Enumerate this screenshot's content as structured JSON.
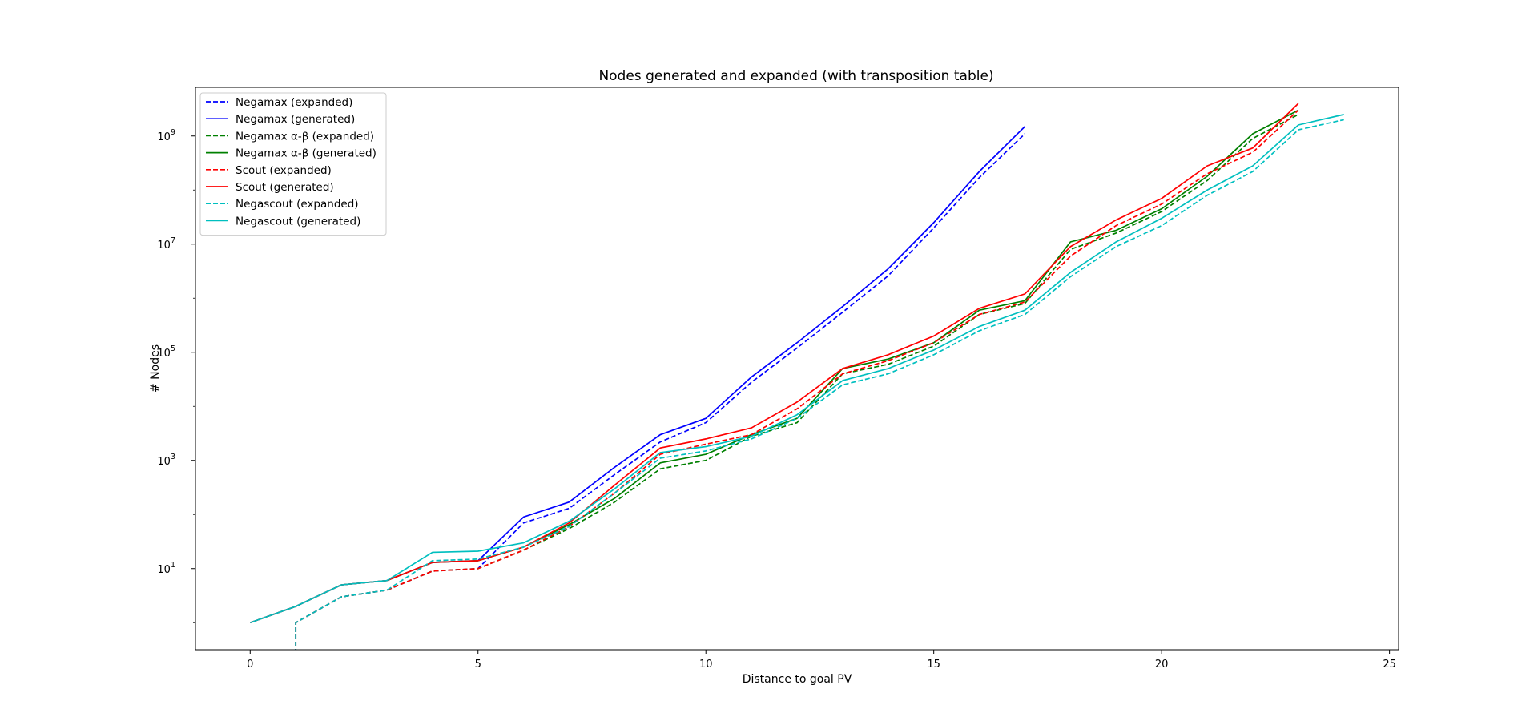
{
  "chart_data": {
    "type": "line",
    "title": "Nodes generated and expanded (with transposition table)",
    "xlabel": "Distance to goal PV",
    "ylabel": "# Nodes",
    "yscale": "log",
    "xlim": [
      -1.2,
      25.2
    ],
    "ylim_log10": [
      -0.5,
      9.9
    ],
    "xticks": [
      0,
      5,
      10,
      15,
      20,
      25
    ],
    "yticks": [
      {
        "exp": 1,
        "base": "10",
        "sup": "1"
      },
      {
        "exp": 3,
        "base": "10",
        "sup": "3"
      },
      {
        "exp": 5,
        "base": "10",
        "sup": "5"
      },
      {
        "exp": 7,
        "base": "10",
        "sup": "7"
      },
      {
        "exp": 9,
        "base": "10",
        "sup": "9"
      }
    ],
    "grid": false,
    "legend_position": "upper-left",
    "series": [
      {
        "name": "Negamax (expanded)",
        "color": "#0000ff",
        "dash": true,
        "x": [
          1,
          2,
          3,
          4,
          5,
          6,
          7,
          8,
          9,
          10,
          11,
          12,
          13,
          14,
          15,
          16,
          17
        ],
        "y": [
          1,
          3,
          4,
          9,
          10,
          70,
          130,
          550,
          2200,
          5000,
          28000,
          120000,
          550000,
          2600000,
          20000000,
          170000000,
          1100000000
        ]
      },
      {
        "name": "Negamax (generated)",
        "color": "#0000ff",
        "dash": false,
        "x": [
          0,
          1,
          2,
          3,
          4,
          5,
          6,
          7,
          8,
          9,
          10,
          11,
          12,
          13,
          14,
          15,
          16,
          17
        ],
        "y": [
          1,
          2,
          5,
          6,
          13,
          14,
          90,
          170,
          750,
          3000,
          6000,
          35000,
          150000,
          700000,
          3500000,
          25000000,
          220000000,
          1500000000
        ]
      },
      {
        "name": "Negamax α-β (expanded)",
        "color": "#008000",
        "dash": true,
        "x": [
          1,
          2,
          3,
          4,
          5,
          6,
          7,
          8,
          9,
          10,
          11,
          12,
          13,
          14,
          15,
          16,
          17,
          18,
          19,
          20,
          21,
          22,
          23
        ],
        "y": [
          1,
          3,
          4,
          9,
          10,
          22,
          55,
          170,
          700,
          1000,
          2800,
          5000,
          40000,
          60000,
          130000,
          500000,
          800000,
          8000000,
          16000000,
          40000000,
          150000000,
          900000000,
          2500000000
        ]
      },
      {
        "name": "Negamax α-β (generated)",
        "color": "#008000",
        "dash": false,
        "x": [
          0,
          1,
          2,
          3,
          4,
          5,
          6,
          7,
          8,
          9,
          10,
          11,
          12,
          13,
          14,
          15,
          16,
          17,
          18,
          19,
          20,
          21,
          22,
          23
        ],
        "y": [
          1,
          2,
          5,
          6,
          13,
          14,
          25,
          65,
          200,
          900,
          1300,
          3000,
          6000,
          50000,
          75000,
          150000,
          600000,
          900000,
          11000000,
          18000000,
          45000000,
          180000000,
          1100000000,
          3000000000
        ]
      },
      {
        "name": "Scout (expanded)",
        "color": "#ff0000",
        "dash": true,
        "x": [
          1,
          2,
          3,
          4,
          5,
          6,
          7,
          8,
          9,
          10,
          11,
          12,
          13,
          14,
          15,
          16,
          17,
          18,
          19,
          20,
          21,
          22,
          23
        ],
        "y": [
          1,
          3,
          4,
          9,
          10,
          22,
          60,
          250,
          1300,
          2000,
          3000,
          9000,
          40000,
          70000,
          150000,
          500000,
          850000,
          6000000,
          22000000,
          55000000,
          200000000,
          500000000,
          3000000000
        ]
      },
      {
        "name": "Scout (generated)",
        "color": "#ff0000",
        "dash": false,
        "x": [
          0,
          1,
          2,
          3,
          4,
          5,
          6,
          7,
          8,
          9,
          10,
          11,
          12,
          13,
          14,
          15,
          16,
          17,
          18,
          19,
          20,
          21,
          22,
          23
        ],
        "y": [
          1,
          2,
          5,
          6,
          13,
          14,
          25,
          70,
          350,
          1700,
          2500,
          4000,
          12000,
          50000,
          90000,
          200000,
          650000,
          1200000,
          9000000,
          28000000,
          70000000,
          280000000,
          600000000,
          4000000000
        ]
      },
      {
        "name": "Negascout (expanded)",
        "color": "#00bfbf",
        "dash": true,
        "x": [
          1,
          2,
          3,
          4,
          5,
          6,
          7,
          8,
          9,
          10,
          11,
          12,
          13,
          14,
          15,
          16,
          17,
          18,
          19,
          20,
          21,
          22,
          23,
          24
        ],
        "y": [
          1,
          3,
          4,
          14,
          15,
          25,
          60,
          250,
          1100,
          1500,
          2500,
          6000,
          25000,
          40000,
          90000,
          250000,
          500000,
          2500000,
          9000000,
          22000000,
          80000000,
          220000000,
          1300000000,
          2000000000
        ]
      },
      {
        "name": "Negascout (generated)",
        "color": "#00bfbf",
        "dash": false,
        "x": [
          0,
          1,
          2,
          3,
          4,
          5,
          6,
          7,
          8,
          9,
          10,
          11,
          12,
          13,
          14,
          15,
          16,
          17,
          18,
          19,
          20,
          21,
          22,
          23,
          24
        ],
        "y": [
          1,
          2,
          5,
          6,
          20,
          21,
          30,
          75,
          300,
          1400,
          1800,
          2800,
          7000,
          30000,
          50000,
          110000,
          300000,
          600000,
          3000000,
          11000000,
          30000000,
          100000000,
          280000000,
          1600000000,
          2500000000
        ]
      }
    ]
  }
}
